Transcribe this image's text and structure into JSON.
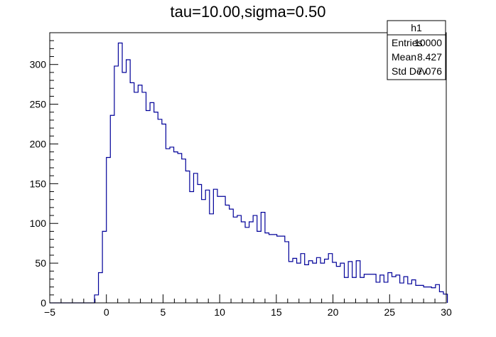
{
  "chart_data": {
    "type": "histogram",
    "title": "tau=10.00,sigma=0.50",
    "xlabel": "",
    "ylabel": "",
    "xlim": [
      -5,
      30
    ],
    "ylim": [
      0,
      340
    ],
    "bin_width": 0.35,
    "x_ticks": [
      -5,
      0,
      5,
      10,
      15,
      20,
      25,
      30
    ],
    "x_tick_labels": [
      "−5",
      "0",
      "5",
      "10",
      "15",
      "20",
      "25",
      "30"
    ],
    "y_ticks": [
      0,
      50,
      100,
      150,
      200,
      250,
      300
    ],
    "y_tick_labels": [
      "0",
      "50",
      "100",
      "150",
      "200",
      "250",
      "300"
    ],
    "x": [
      -1.05,
      -0.7,
      -0.35,
      0.0,
      0.35,
      0.7,
      1.05,
      1.4,
      1.75,
      2.1,
      2.45,
      2.8,
      3.15,
      3.5,
      3.85,
      4.2,
      4.55,
      4.9,
      5.25,
      5.6,
      5.95,
      6.3,
      6.65,
      7.0,
      7.35,
      7.7,
      8.05,
      8.4,
      8.75,
      9.1,
      9.45,
      9.8,
      10.15,
      10.5,
      10.85,
      11.2,
      11.55,
      11.9,
      12.25,
      12.6,
      12.95,
      13.3,
      13.65,
      14.0,
      14.35,
      14.7,
      15.05,
      15.4,
      15.75,
      16.1,
      16.45,
      16.8,
      17.15,
      17.5,
      17.85,
      18.2,
      18.55,
      18.9,
      19.25,
      19.6,
      19.95,
      20.3,
      20.65,
      21.0,
      21.35,
      21.7,
      22.05,
      22.4,
      22.75,
      23.1,
      23.45,
      23.8,
      24.15,
      24.5,
      24.85,
      25.2,
      25.55,
      25.9,
      26.25,
      26.6,
      26.95,
      27.3,
      27.65,
      28.0,
      28.35,
      28.7,
      29.05,
      29.4,
      29.75
    ],
    "values": [
      10,
      38,
      90,
      183,
      236,
      298,
      327,
      290,
      306,
      277,
      265,
      274,
      265,
      242,
      252,
      240,
      231,
      225,
      194,
      196,
      190,
      188,
      181,
      166,
      140,
      163,
      149,
      130,
      142,
      112,
      143,
      134,
      134,
      123,
      118,
      108,
      110,
      102,
      95,
      102,
      110,
      90,
      114,
      88,
      86,
      86,
      84,
      84,
      77,
      52,
      56,
      50,
      62,
      48,
      53,
      50,
      57,
      50,
      55,
      62,
      51,
      46,
      50,
      32,
      52,
      32,
      53,
      32,
      36,
      36,
      36,
      26,
      35,
      26,
      38,
      33,
      35,
      25,
      33,
      24,
      29,
      22,
      22,
      20,
      20,
      19,
      23,
      14,
      11
    ],
    "color": "#000099",
    "stats_box": {
      "name": "h1",
      "rows": [
        {
          "label": "Entries",
          "value": "10000"
        },
        {
          "label": "Mean",
          "value": "8.427"
        },
        {
          "label": "Std Dev",
          "value": "7.076"
        }
      ]
    },
    "grid": false,
    "legend_placement": "top-right"
  }
}
